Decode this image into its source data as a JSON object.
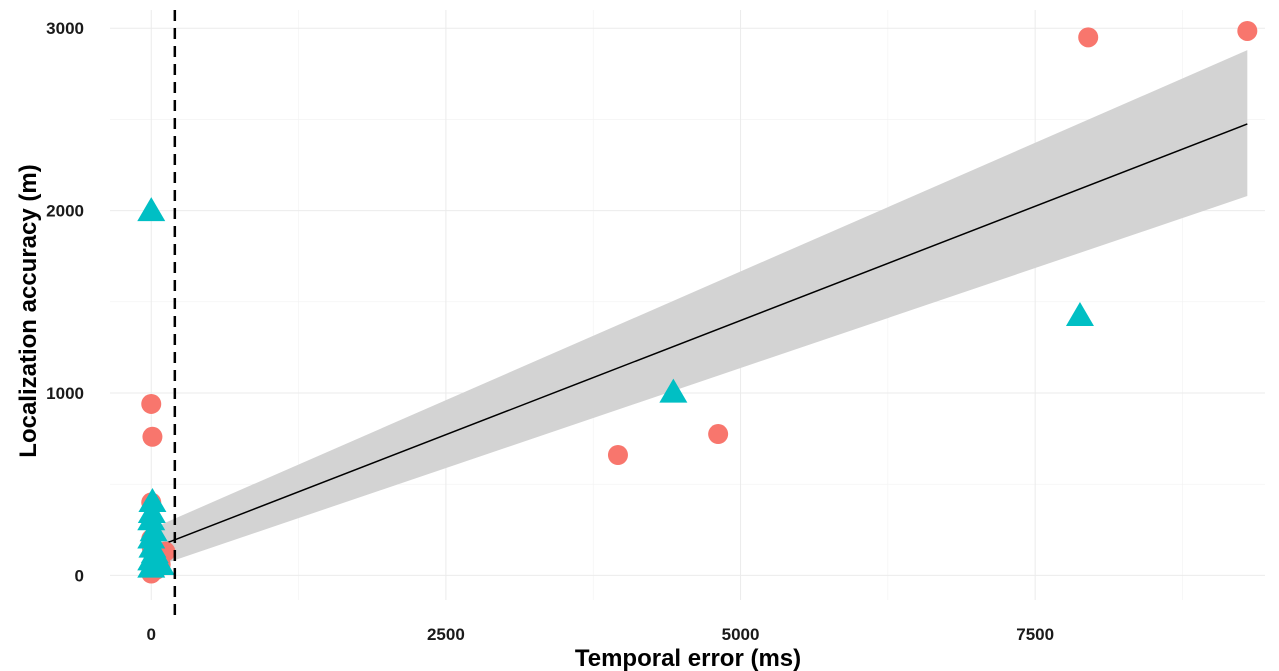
{
  "chart_data": {
    "type": "scatter",
    "title": "",
    "xlabel": "Temporal error (ms)",
    "ylabel": "Localization accuracy (m)",
    "xlim": [
      -350,
      9450
    ],
    "ylim": [
      -135,
      3100
    ],
    "x_ticks": [
      0,
      2500,
      5000,
      7500
    ],
    "x_tick_labels": [
      "0",
      "2500",
      "5000",
      "7500"
    ],
    "y_ticks": [
      0,
      1000,
      2000,
      3000
    ],
    "y_tick_labels": [
      "0",
      "1000",
      "2000",
      "3000"
    ],
    "grid": true,
    "legend": "none",
    "threshold_line": {
      "x": 200,
      "style": "dashed",
      "color": "#000000"
    },
    "fit": {
      "x_range": [
        0,
        9300
      ],
      "line": [
        [
          0,
          145
        ],
        [
          9300,
          2475
        ]
      ],
      "ci_lower": [
        [
          0,
          40
        ],
        [
          9300,
          2080
        ]
      ],
      "ci_upper": [
        [
          0,
          255
        ],
        [
          9300,
          2880
        ]
      ],
      "line_color": "#000000",
      "band_color": "#d3d3d3"
    },
    "series": [
      {
        "marker": "circle",
        "color": "#f8766d",
        "points": [
          [
            0,
            940
          ],
          [
            10,
            760
          ],
          [
            0,
            400
          ],
          [
            0,
            200
          ],
          [
            5,
            150
          ],
          [
            20,
            100
          ],
          [
            120,
            130
          ],
          [
            80,
            60
          ],
          [
            0,
            10
          ],
          [
            40,
            30
          ],
          [
            3960,
            660
          ],
          [
            4810,
            775
          ],
          [
            7950,
            2950
          ],
          [
            9300,
            2985
          ]
        ]
      },
      {
        "marker": "triangle",
        "color": "#00bfc4",
        "points": [
          [
            0,
            1995
          ],
          [
            10,
            400
          ],
          [
            5,
            340
          ],
          [
            0,
            300
          ],
          [
            20,
            240
          ],
          [
            0,
            200
          ],
          [
            10,
            150
          ],
          [
            30,
            120
          ],
          [
            0,
            80
          ],
          [
            40,
            60
          ],
          [
            80,
            55
          ],
          [
            0,
            40
          ],
          [
            4430,
            1000
          ],
          [
            7880,
            1420
          ]
        ]
      }
    ]
  }
}
